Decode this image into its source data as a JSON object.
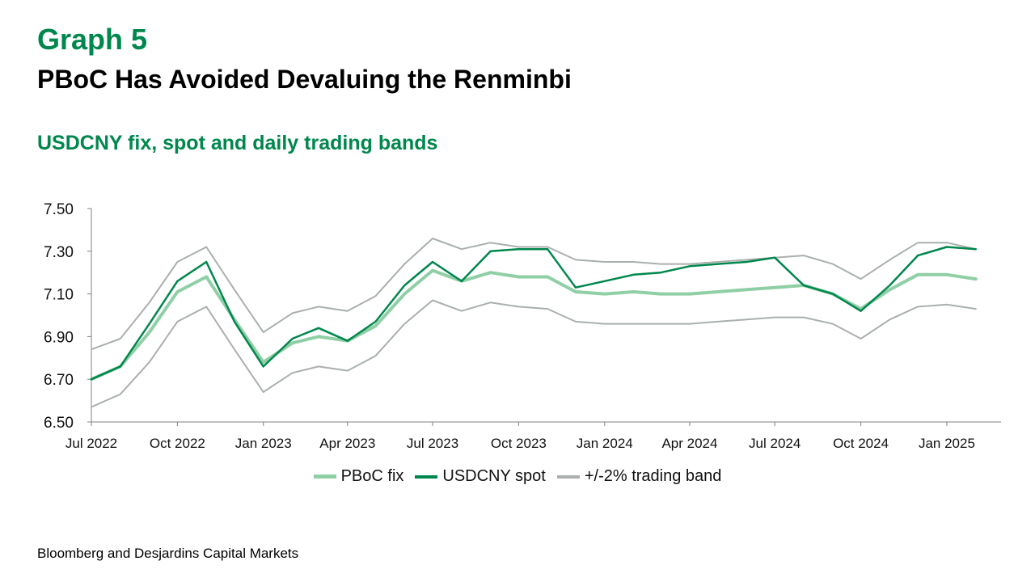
{
  "header": {
    "graph_label": "Graph 5",
    "title": "PBoC Has Avoided Devaluing the Renminbi",
    "subtitle": "USDCNY fix, spot and daily trading bands"
  },
  "source": "Bloomberg and Desjardins Capital Markets",
  "colors": {
    "fix": "#8fcfa5",
    "spot": "#00874d",
    "band": "#a9b0ad",
    "green_text": "#00874d"
  },
  "chart_data": {
    "type": "line",
    "xlabel": "",
    "ylabel": "",
    "ylim": [
      6.5,
      7.5
    ],
    "yticks": [
      6.5,
      6.7,
      6.9,
      7.1,
      7.3,
      7.5
    ],
    "ytick_labels": [
      "6.50",
      "6.70",
      "6.90",
      "7.10",
      "7.30",
      "7.50"
    ],
    "xlim": [
      "2022-07-01",
      "2025-02-28"
    ],
    "xticks": [
      {
        "date": "2022-07-01",
        "label": "Jul 2022"
      },
      {
        "date": "2022-10-01",
        "label": "Oct 2022"
      },
      {
        "date": "2023-01-01",
        "label": "Jan 2023"
      },
      {
        "date": "2023-04-01",
        "label": "Apr 2023"
      },
      {
        "date": "2023-07-01",
        "label": "Jul 2023"
      },
      {
        "date": "2023-10-01",
        "label": "Oct 2023"
      },
      {
        "date": "2024-01-01",
        "label": "Jan 2024"
      },
      {
        "date": "2024-04-01",
        "label": "Apr 2024"
      },
      {
        "date": "2024-07-01",
        "label": "Jul 2024"
      },
      {
        "date": "2024-10-01",
        "label": "Oct 2024"
      },
      {
        "date": "2025-01-01",
        "label": "Jan 2025"
      }
    ],
    "grid": false,
    "legend_position": "bottom",
    "x": [
      "2022-07-01",
      "2022-08-01",
      "2022-09-01",
      "2022-10-01",
      "2022-11-01",
      "2022-12-01",
      "2023-01-01",
      "2023-02-01",
      "2023-03-01",
      "2023-04-01",
      "2023-05-01",
      "2023-06-01",
      "2023-07-01",
      "2023-08-01",
      "2023-09-01",
      "2023-10-01",
      "2023-11-01",
      "2023-12-01",
      "2024-01-01",
      "2024-02-01",
      "2024-03-01",
      "2024-04-01",
      "2024-05-01",
      "2024-06-01",
      "2024-07-01",
      "2024-08-01",
      "2024-09-01",
      "2024-10-01",
      "2024-11-01",
      "2024-12-01",
      "2025-01-01",
      "2025-02-01"
    ],
    "series": [
      {
        "name": "PBoC fix",
        "values": [
          6.7,
          6.76,
          6.92,
          7.11,
          7.18,
          6.98,
          6.78,
          6.87,
          6.9,
          6.88,
          6.95,
          7.1,
          7.21,
          7.16,
          7.2,
          7.18,
          7.18,
          7.11,
          7.1,
          7.11,
          7.1,
          7.1,
          7.11,
          7.12,
          7.13,
          7.14,
          7.1,
          7.03,
          7.12,
          7.19,
          7.19,
          7.17
        ]
      },
      {
        "name": "USDCNY spot",
        "values": [
          6.7,
          6.76,
          6.96,
          7.16,
          7.25,
          6.97,
          6.76,
          6.89,
          6.94,
          6.88,
          6.97,
          7.14,
          7.25,
          7.16,
          7.3,
          7.31,
          7.31,
          7.13,
          7.16,
          7.19,
          7.2,
          7.23,
          7.24,
          7.25,
          7.27,
          7.14,
          7.1,
          7.02,
          7.14,
          7.28,
          7.32,
          7.31
        ]
      },
      {
        "name": "+/-2% trading band",
        "values": [
          6.84,
          6.89,
          7.06,
          7.25,
          7.32,
          7.12,
          6.92,
          7.01,
          7.04,
          7.02,
          7.09,
          7.24,
          7.36,
          7.31,
          7.34,
          7.32,
          7.32,
          7.26,
          7.25,
          7.25,
          7.24,
          7.24,
          7.25,
          7.26,
          7.27,
          7.28,
          7.24,
          7.17,
          7.26,
          7.34,
          7.34,
          7.31
        ]
      },
      {
        "name": "+/-2% trading band",
        "values": [
          6.57,
          6.63,
          6.78,
          6.97,
          7.04,
          6.84,
          6.64,
          6.73,
          6.76,
          6.74,
          6.81,
          6.96,
          7.07,
          7.02,
          7.06,
          7.04,
          7.03,
          6.97,
          6.96,
          6.96,
          6.96,
          6.96,
          6.97,
          6.98,
          6.99,
          6.99,
          6.96,
          6.89,
          6.98,
          7.04,
          7.05,
          7.03
        ]
      }
    ]
  },
  "legend": {
    "fix_label": "PBoC fix",
    "spot_label": "USDCNY spot",
    "band_label": "+/-2% trading band"
  }
}
